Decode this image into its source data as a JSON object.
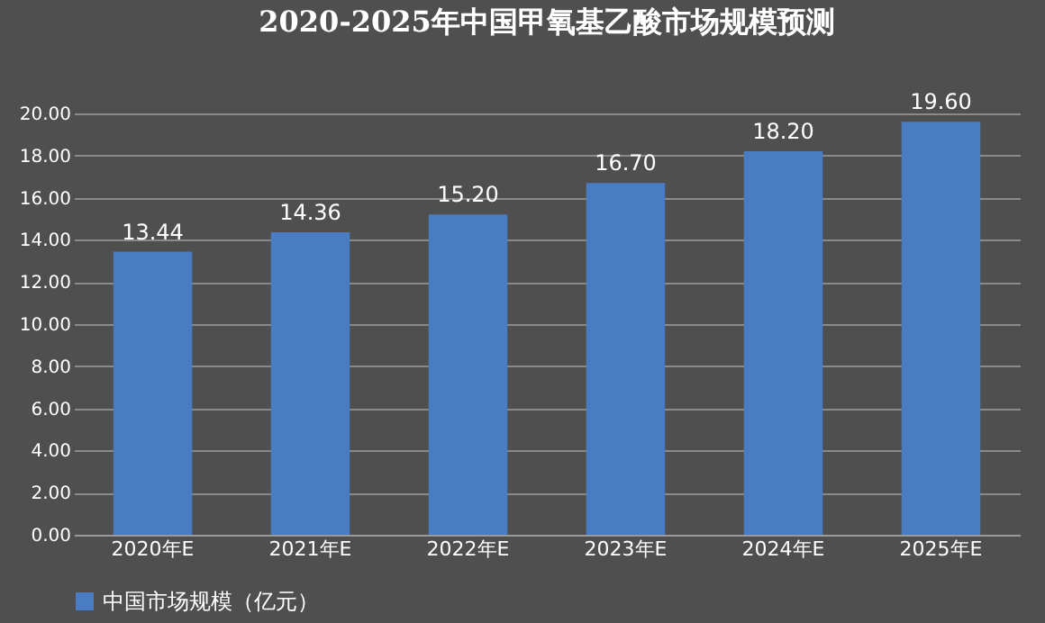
{
  "chart_data": {
    "type": "bar",
    "title": "2020-2025年中国甲氧基乙酸市场规模预测",
    "categories": [
      "2020年E",
      "2021年E",
      "2022年E",
      "2023年E",
      "2024年E",
      "2025年E"
    ],
    "series": [
      {
        "name": "中国市场规模（亿元）",
        "color": "#4a7cc4",
        "values": [
          13.44,
          14.36,
          15.2,
          16.7,
          18.2,
          19.6
        ],
        "value_labels": [
          "13.44",
          "14.36",
          "15.20",
          "16.70",
          "18.20",
          "19.60"
        ]
      }
    ],
    "ylim": [
      0,
      20
    ],
    "yticks": [
      {
        "value": 0,
        "label": "0.00"
      },
      {
        "value": 2,
        "label": "2.00"
      },
      {
        "value": 4,
        "label": "4.00"
      },
      {
        "value": 6,
        "label": "6.00"
      },
      {
        "value": 8,
        "label": "8.00"
      },
      {
        "value": 10,
        "label": "10.00"
      },
      {
        "value": 12,
        "label": "12.00"
      },
      {
        "value": 14,
        "label": "14.00"
      },
      {
        "value": 16,
        "label": "16.00"
      },
      {
        "value": 18,
        "label": "18.00"
      },
      {
        "value": 20,
        "label": "20.00"
      }
    ],
    "grid": "y",
    "legend": "bottom"
  }
}
